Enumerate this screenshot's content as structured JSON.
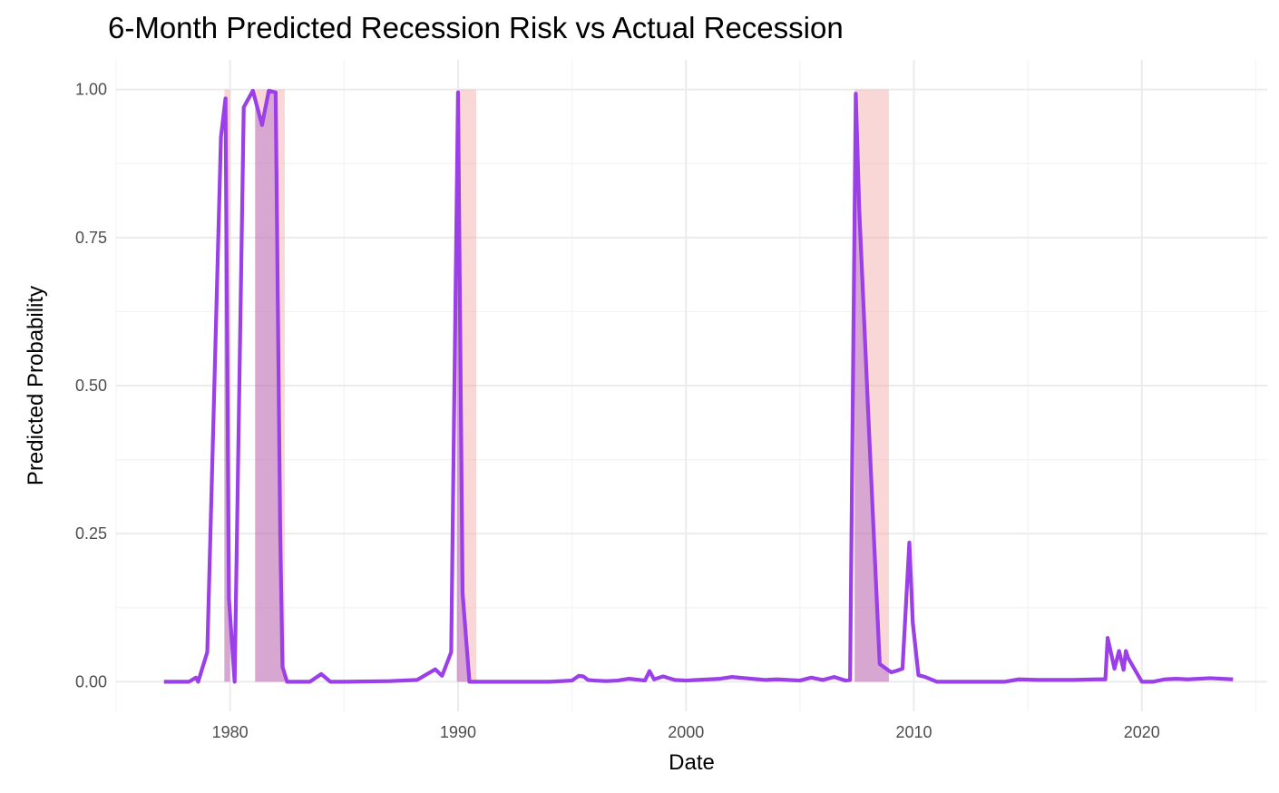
{
  "chart_data": {
    "type": "line",
    "title": "6-Month Predicted Recession Risk vs Actual Recession",
    "xlabel": "Date",
    "ylabel": "Predicted Probability",
    "x_ticks": [
      "1980",
      "1990",
      "2000",
      "2010",
      "2020"
    ],
    "y_ticks": [
      "0.00",
      "0.25",
      "0.50",
      "0.75",
      "1.00"
    ],
    "xlim": [
      1975,
      2025.5
    ],
    "ylim": [
      -0.05,
      1.05
    ],
    "grid": true,
    "legend": "none",
    "colors": {
      "line": "#9b3fe8",
      "recession_shading": "#f4a6a6",
      "overlap_shading": "#c8a2c8",
      "grid": "#ebebeb"
    },
    "recession_periods": [
      {
        "start": 1979.75,
        "end": 1980.0
      },
      {
        "start": 1981.1,
        "end": 1982.4
      },
      {
        "start": 1989.95,
        "end": 1990.8
      },
      {
        "start": 2007.4,
        "end": 2008.9
      }
    ],
    "series": [
      {
        "x": [
          1977.1,
          1978.2,
          1978.5,
          1978.6,
          1978.8,
          1979.0,
          1979.6,
          1979.8,
          1979.95,
          1980.2,
          1980.6,
          1981.0,
          1981.4,
          1981.7,
          1982.0,
          1982.2,
          1982.3,
          1982.5,
          1982.65,
          1983.0,
          1983.5,
          1984.0,
          1984.4,
          1984.7,
          1985.0,
          1987.0,
          1988.2,
          1989.0,
          1989.3,
          1989.7,
          1990.0,
          1990.2,
          1990.5,
          1990.7,
          1991.0,
          1992.0,
          1994.0,
          1995.0,
          1995.3,
          1995.5,
          1995.7,
          1996.0,
          1996.5,
          1997.0,
          1997.5,
          1998.0,
          1998.2,
          1998.4,
          1998.6,
          1999.0,
          1999.5,
          2000.0,
          2001.5,
          2002.0,
          2003.5,
          2004.0,
          2005.0,
          2005.5,
          2006.0,
          2006.5,
          2007.0,
          2007.2,
          2007.45,
          2007.6,
          2008.0,
          2008.5,
          2009.0,
          2009.2,
          2009.5,
          2009.8,
          2009.95,
          2010.2,
          2010.5,
          2011.0,
          2012.0,
          2013.0,
          2014.0,
          2014.6,
          2015.5,
          2016.0,
          2017.0,
          2018.0,
          2018.4,
          2018.5,
          2018.8,
          2019.0,
          2019.2,
          2019.3,
          2019.4,
          2020.0,
          2020.5,
          2021.0,
          2021.5,
          2022.0,
          2023.0,
          2024.0
        ],
        "values": [
          0.0,
          0.0,
          0.007,
          0.0,
          0.025,
          0.05,
          0.92,
          0.985,
          0.14,
          0.0,
          0.97,
          0.998,
          0.94,
          0.998,
          0.995,
          0.25,
          0.025,
          0.0,
          0.0,
          0.0,
          0.0,
          0.013,
          0.0,
          0.0,
          0.0,
          0.001,
          0.003,
          0.021,
          0.01,
          0.05,
          0.995,
          0.15,
          0.0,
          0.0,
          0.0,
          0.0,
          0.0,
          0.002,
          0.01,
          0.009,
          0.003,
          0.002,
          0.001,
          0.002,
          0.005,
          0.003,
          0.002,
          0.018,
          0.004,
          0.009,
          0.003,
          0.002,
          0.005,
          0.008,
          0.003,
          0.004,
          0.002,
          0.007,
          0.003,
          0.008,
          0.002,
          0.003,
          0.993,
          0.8,
          0.45,
          0.03,
          0.016,
          0.018,
          0.022,
          0.235,
          0.1,
          0.011,
          0.008,
          0.0,
          0.0,
          0.0,
          0.0,
          0.004,
          0.003,
          0.003,
          0.003,
          0.004,
          0.004,
          0.074,
          0.022,
          0.052,
          0.02,
          0.052,
          0.04,
          0.0,
          0.0,
          0.004,
          0.005,
          0.004,
          0.006,
          0.004
        ]
      }
    ]
  }
}
